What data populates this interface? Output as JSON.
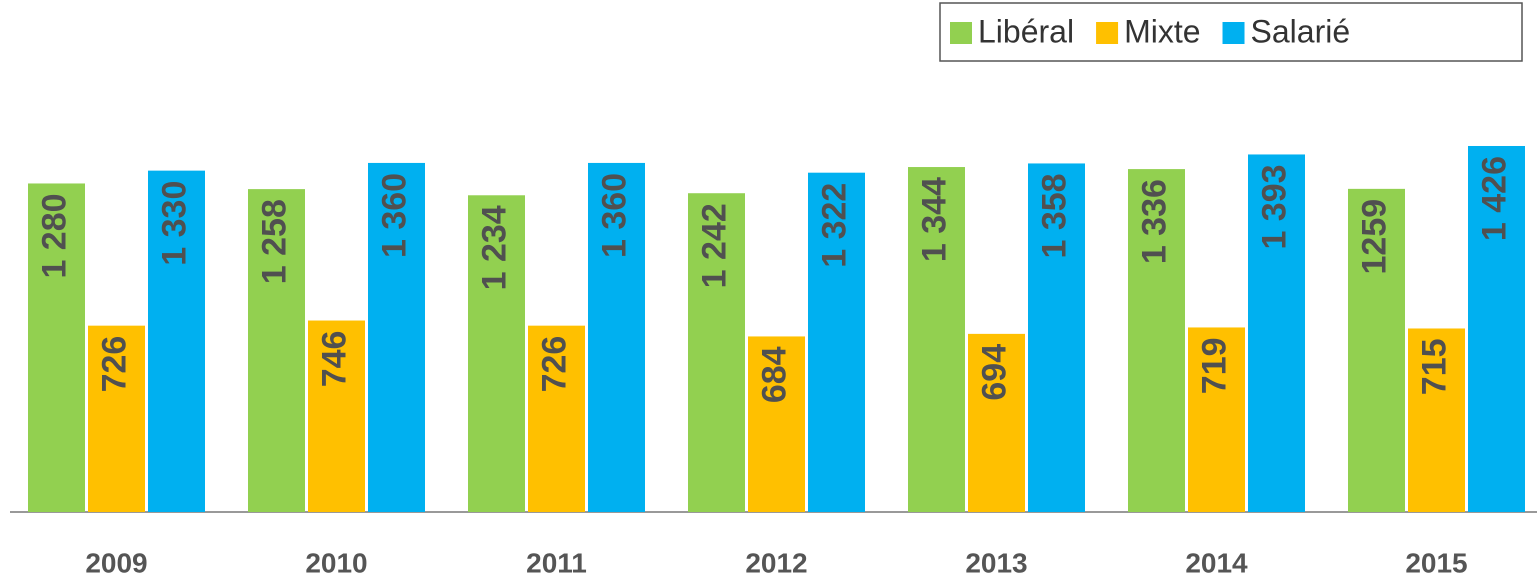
{
  "chart_data": {
    "type": "bar",
    "categories": [
      "2009",
      "2010",
      "2011",
      "2012",
      "2013",
      "2014",
      "2015"
    ],
    "series": [
      {
        "name": "Libéral",
        "color": "#92d050",
        "values": [
          1280,
          1258,
          1234,
          1242,
          1344,
          1336,
          1259
        ],
        "value_labels": [
          "1 280",
          "1 258",
          "1 234",
          "1 242",
          "1 344",
          "1 336",
          "1259"
        ]
      },
      {
        "name": "Mixte",
        "color": "#ffc000",
        "values": [
          726,
          746,
          726,
          684,
          694,
          719,
          715
        ],
        "value_labels": [
          "726",
          "746",
          "726",
          "684",
          "694",
          "719",
          "715"
        ]
      },
      {
        "name": "Salarié",
        "color": "#00b0f0",
        "values": [
          1330,
          1360,
          1360,
          1322,
          1358,
          1393,
          1426
        ],
        "value_labels": [
          "1 330",
          "1 360",
          "1 360",
          "1 322",
          "1 358",
          "1 393",
          "1 426"
        ]
      }
    ],
    "ylim": [
      0,
      1500
    ]
  }
}
